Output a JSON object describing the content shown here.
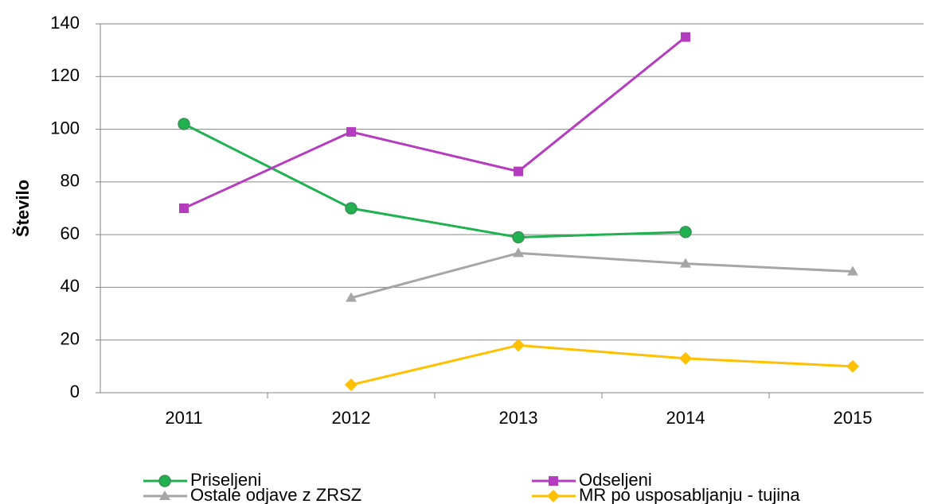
{
  "chart_data": {
    "type": "line",
    "y_label": "Število",
    "categories": [
      "2011",
      "2012",
      "2013",
      "2014",
      "2015"
    ],
    "series": [
      {
        "name": "Priseljeni",
        "color": "#20b150",
        "marker": "circle",
        "values": [
          102,
          70,
          59,
          61,
          null
        ]
      },
      {
        "name": "Odseljeni",
        "color": "#b53cbf",
        "marker": "square",
        "values": [
          70,
          99,
          84,
          135,
          null
        ]
      },
      {
        "name": "Ostale odjave z ZRSZ",
        "color": "#a6a6a6",
        "marker": "triangle",
        "values": [
          null,
          36,
          53,
          49,
          46
        ]
      },
      {
        "name": "MR po usposabljanju - tujina",
        "color": "#ffc000",
        "marker": "diamond",
        "values": [
          null,
          3,
          18,
          13,
          10
        ]
      }
    ],
    "ylim": [
      0,
      140
    ],
    "yticks": [
      0,
      20,
      40,
      60,
      80,
      100,
      120,
      140
    ],
    "grid": true,
    "legend": "bottom"
  }
}
